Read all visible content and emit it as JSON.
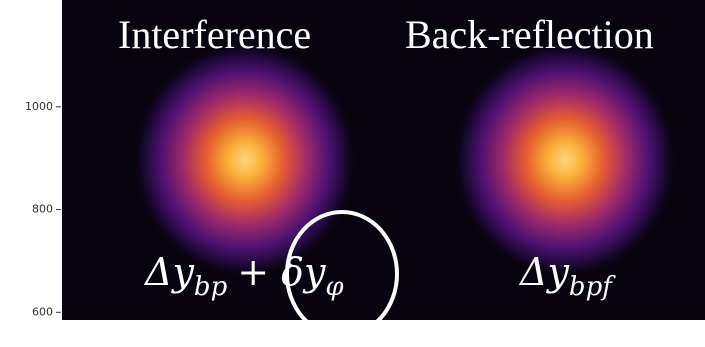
{
  "header": {
    "left_title": "Interference",
    "right_title": "Back-reflection"
  },
  "axis": {
    "ylim": [
      585,
      1208
    ],
    "yticks": [
      600,
      800,
      1000
    ]
  },
  "left_label": {
    "term1": "Δy",
    "term1_sub": "bp",
    "operator": "+",
    "term2": "δy",
    "term2_sub": "φ"
  },
  "right_label": {
    "term1": "Δy",
    "term1_sub": "bpf"
  }
}
